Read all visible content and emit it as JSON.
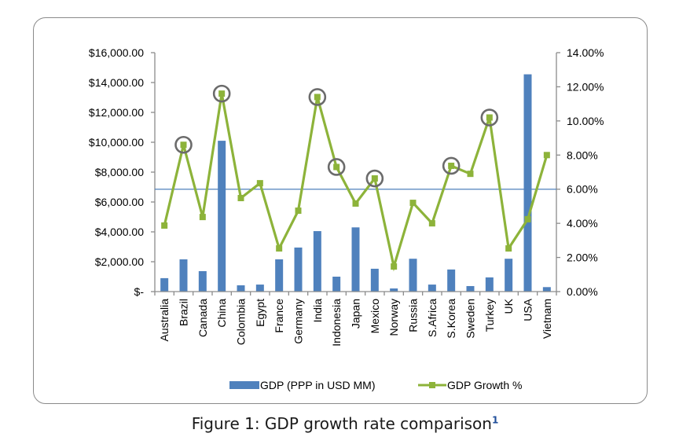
{
  "caption": {
    "text": "Figure 1: GDP growth rate comparison",
    "footnote": "1"
  },
  "chart_data": {
    "type": "bar",
    "title": "",
    "xlabel": "",
    "categories": [
      "Australia",
      "Brazil",
      "Canada",
      "China",
      "Colombia",
      "Egypt",
      "France",
      "Germany",
      "India",
      "Indonesia",
      "Japan",
      "Mexico",
      "Norway",
      "Russia",
      "S.Africa",
      "S.Korea",
      "Sweden",
      "Turkey",
      "UK",
      "USA",
      "Vietnam"
    ],
    "series": [
      {
        "name": "GDP (PPP in USD MM)",
        "type": "bar",
        "axis": "left",
        "color": "#4F81BD",
        "values": [
          900,
          2160,
          1370,
          10100,
          420,
          470,
          2160,
          2950,
          4050,
          1000,
          4300,
          1530,
          210,
          2200,
          470,
          1480,
          370,
          950,
          2200,
          14550,
          300
        ]
      },
      {
        "name": "GDP Growth %",
        "type": "line",
        "axis": "right",
        "color": "#8DB33A",
        "values": [
          3.87,
          8.6,
          4.37,
          11.6,
          5.48,
          6.35,
          2.53,
          4.74,
          11.4,
          7.3,
          5.16,
          6.63,
          1.47,
          5.2,
          4.0,
          7.37,
          6.9,
          10.2,
          2.53,
          4.24,
          8.0
        ]
      }
    ],
    "highlighted": [
      "Brazil",
      "China",
      "India",
      "Indonesia",
      "Mexico",
      "S.Korea",
      "Turkey"
    ],
    "reference_line": {
      "axis": "right",
      "value": 6.0,
      "color": "#4F81BD"
    },
    "left_axis": {
      "ylim": [
        0,
        16000
      ],
      "ticks": [
        0,
        2000,
        4000,
        6000,
        8000,
        10000,
        12000,
        14000,
        16000
      ],
      "tick_labels": [
        "$-",
        "$2,000.00",
        "$4,000.00",
        "$6,000.00",
        "$8,000.00",
        "$10,000.00",
        "$12,000.00",
        "$14,000.00",
        "$16,000.00"
      ]
    },
    "right_axis": {
      "ylim": [
        0,
        14
      ],
      "ticks": [
        0,
        2,
        4,
        6,
        8,
        10,
        12,
        14
      ],
      "tick_labels": [
        "0.00%",
        "2.00%",
        "4.00%",
        "6.00%",
        "8.00%",
        "10.00%",
        "12.00%",
        "14.00%"
      ]
    },
    "grid": false,
    "legend": {
      "position": "bottom",
      "entries": [
        "GDP (PPP in USD MM)",
        "GDP Growth %"
      ]
    }
  }
}
